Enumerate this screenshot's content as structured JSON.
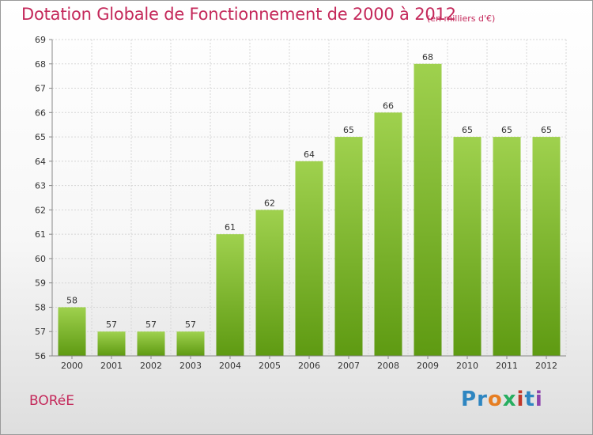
{
  "header": {
    "title": "Dotation Globale de Fonctionnement de 2000 à 2012",
    "subtitle": "(en milliers d'€)"
  },
  "footer": {
    "commune": "BORéE",
    "brand": "Proxiti",
    "brand_letters": [
      {
        "ch": "P",
        "color": "#2e86c1"
      },
      {
        "ch": "r",
        "color": "#2e86c1"
      },
      {
        "ch": "o",
        "color": "#e67e22"
      },
      {
        "ch": "x",
        "color": "#27ae60"
      },
      {
        "ch": "i",
        "color": "#c0392b"
      },
      {
        "ch": "t",
        "color": "#2e86c1"
      },
      {
        "ch": "i",
        "color": "#8e44ad"
      }
    ]
  },
  "colors": {
    "bar_top": "#9fd14e",
    "bar_bottom": "#5e9a12",
    "grid": "#d6d6d6",
    "axis": "#888888",
    "title": "#c4285a"
  },
  "chart_data": {
    "type": "bar",
    "title": "Dotation Globale de Fonctionnement de 2000 à 2012",
    "subtitle": "(en milliers d'€)",
    "xlabel": "",
    "ylabel": "",
    "categories": [
      "2000",
      "2001",
      "2002",
      "2003",
      "2004",
      "2005",
      "2006",
      "2007",
      "2008",
      "2009",
      "2010",
      "2011",
      "2012"
    ],
    "values": [
      58,
      57,
      57,
      57,
      61,
      62,
      64,
      65,
      66,
      68,
      65,
      65,
      65
    ],
    "ylim": [
      56,
      69
    ],
    "yticks": [
      56,
      57,
      58,
      59,
      60,
      61,
      62,
      63,
      64,
      65,
      66,
      67,
      68,
      69
    ],
    "grid": true,
    "legend": "none"
  }
}
